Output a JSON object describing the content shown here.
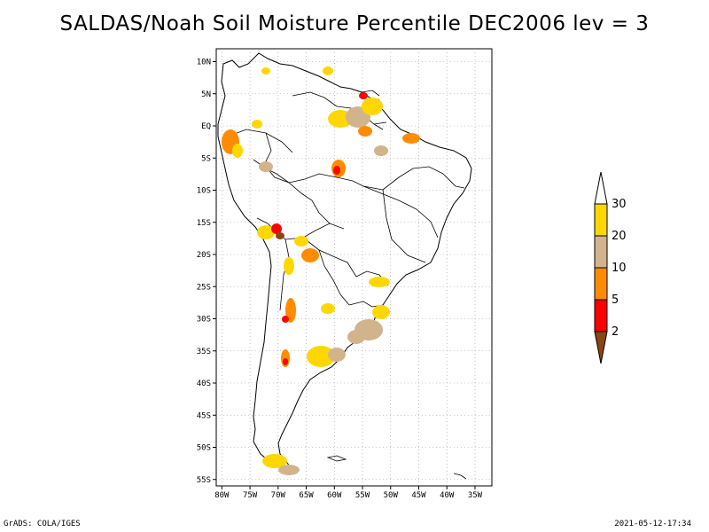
{
  "title": "SALDAS/Noah Soil Moisture Percentile DEC2006 lev = 3",
  "footer": {
    "left": "GrADS: COLA/IGES",
    "right": "2021-05-12-17:34"
  },
  "map": {
    "lat_range": [
      -56,
      12
    ],
    "lon_range": [
      -81,
      -32
    ],
    "lat_ticks": [
      "10N",
      "5N",
      "EQ",
      "5S",
      "10S",
      "15S",
      "20S",
      "25S",
      "30S",
      "35S",
      "40S",
      "45S",
      "50S",
      "55S"
    ],
    "lon_ticks": [
      "80W",
      "75W",
      "70W",
      "65W",
      "60W",
      "55W",
      "50W",
      "45W",
      "40W",
      "35W"
    ]
  },
  "colorbar": {
    "levels": [
      "2",
      "5",
      "10",
      "20",
      "30"
    ],
    "colors": {
      "below_2": "#8b4513",
      "2_5": "#ff0000",
      "5_10": "#ff8c00",
      "10_20": "#d2b48c",
      "20_30": "#ffd700",
      "above_30": "#ffffff"
    }
  }
}
